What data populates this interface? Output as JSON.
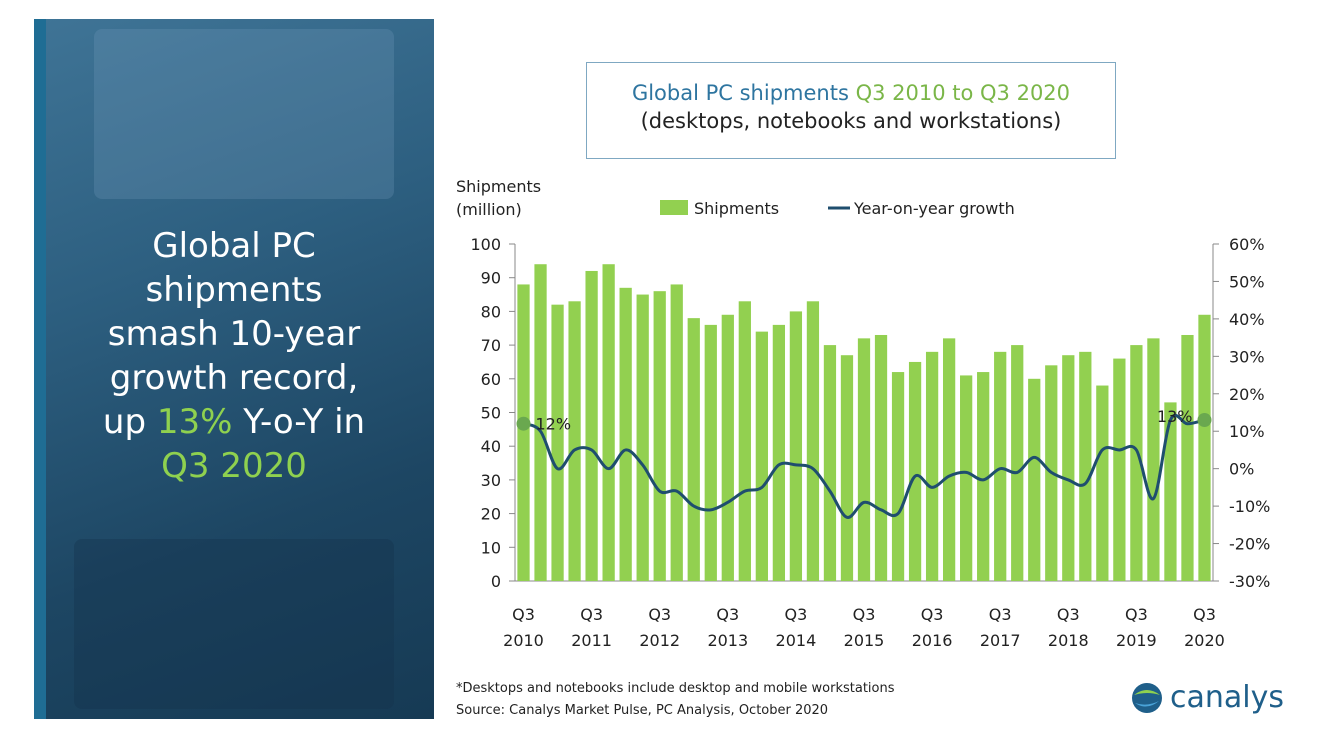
{
  "headline": {
    "line1": "Global PC",
    "line2": "shipments",
    "line3": "smash 10-year",
    "line4": "growth record,",
    "line5_pre": "up ",
    "line5_hl": "13%",
    "line5_post": " Y-o-Y in",
    "line6": "Q3 2020"
  },
  "chart_title": {
    "part1": "Global PC shipments ",
    "part2": "Q3 2010 to Q3 2020",
    "line2": "(desktops, notebooks and workstations)"
  },
  "colors": {
    "bar": "#92d050",
    "line": "#1f4e6e",
    "highlight": "#8fd14f",
    "title_blue": "#2e75a0",
    "title_green": "#7ab648"
  },
  "chart_data": {
    "type": "bar",
    "ylabel_line1": "Shipments",
    "ylabel_line2": "(million)",
    "legend": [
      "Shipments",
      "Year-on-year growth"
    ],
    "ylim": [
      0,
      100
    ],
    "y2lim": [
      -30,
      60
    ],
    "yticks": [
      "0",
      "10",
      "20",
      "30",
      "40",
      "50",
      "60",
      "70",
      "80",
      "90",
      "100"
    ],
    "y2ticks": [
      "-30%",
      "-20%",
      "-10%",
      "0%",
      "10%",
      "20%",
      "30%",
      "40%",
      "50%",
      "60%"
    ],
    "xtick_labels": [
      {
        "q": "Q3",
        "y": "2010"
      },
      {
        "q": "Q3",
        "y": "2011"
      },
      {
        "q": "Q3",
        "y": "2012"
      },
      {
        "q": "Q3",
        "y": "2013"
      },
      {
        "q": "Q3",
        "y": "2014"
      },
      {
        "q": "Q3",
        "y": "2015"
      },
      {
        "q": "Q3",
        "y": "2016"
      },
      {
        "q": "Q3",
        "y": "2017"
      },
      {
        "q": "Q3",
        "y": "2018"
      },
      {
        "q": "Q3",
        "y": "2019"
      },
      {
        "q": "Q3",
        "y": "2020"
      }
    ],
    "series": [
      {
        "name": "Shipments",
        "values": [
          88,
          94,
          82,
          83,
          92,
          94,
          87,
          85,
          86,
          88,
          78,
          76,
          79,
          83,
          74,
          76,
          80,
          83,
          70,
          67,
          72,
          73,
          62,
          65,
          68,
          72,
          61,
          62,
          68,
          70,
          60,
          64,
          67,
          68,
          58,
          66,
          70,
          72,
          53,
          73,
          79
        ]
      },
      {
        "name": "Year-on-year growth",
        "values": [
          12,
          10,
          0,
          5,
          5,
          0,
          5,
          1,
          -6,
          -6,
          -10,
          -11,
          -9,
          -6,
          -5,
          1,
          1,
          0,
          -6,
          -13,
          -9,
          -11,
          -12,
          -2,
          -5,
          -2,
          -1,
          -3,
          0,
          -1,
          3,
          -1,
          -3,
          -4,
          5,
          5,
          5,
          -8,
          13,
          12,
          13
        ]
      }
    ],
    "annotations": [
      "12%",
      "13%"
    ]
  },
  "footnote": {
    "line1": "*Desktops and notebooks include desktop and mobile workstations",
    "line2": "Source: Canalys Market Pulse, PC Analysis, October 2020"
  },
  "logo": {
    "text": "canalys",
    "icon": "globe-icon"
  }
}
